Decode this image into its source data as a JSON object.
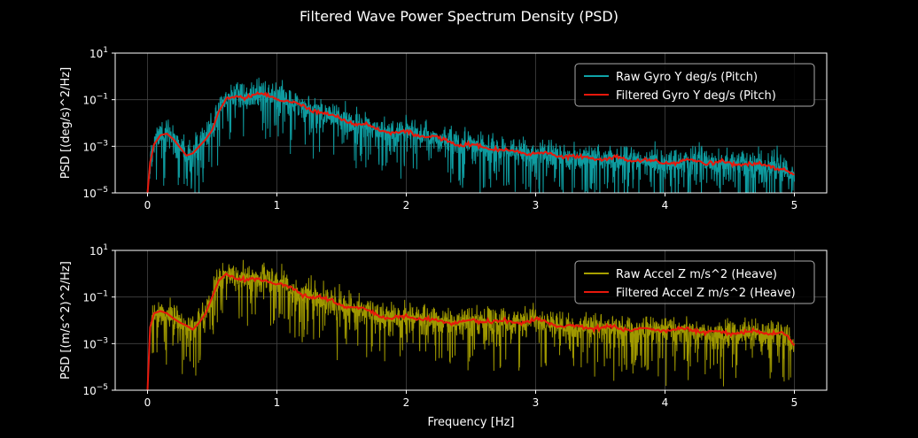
{
  "figure": {
    "title": "Filtered Wave Power Spectrum Density (PSD)",
    "background": "#000000",
    "text_color": "#ffffff",
    "grid_color": "#444444"
  },
  "chart_data": [
    {
      "type": "line",
      "title": "",
      "xlabel": "",
      "ylabel": "PSD [(deg/s)^2/Hz]",
      "xlim": [
        -0.25,
        5.25
      ],
      "ylim": [
        1e-05,
        10
      ],
      "yscale": "log",
      "grid": true,
      "legend_position": "top-right",
      "xticks": [
        0,
        1,
        2,
        3,
        4,
        5
      ],
      "xtick_labels": [
        "0",
        "1",
        "2",
        "3",
        "4",
        "5"
      ],
      "yticks": [
        1e-05,
        0.001,
        0.1,
        10
      ],
      "ytick_labels": [
        [
          "10",
          "−5"
        ],
        [
          "10",
          "−3"
        ],
        [
          "10",
          "−1"
        ],
        [
          "10",
          "1"
        ]
      ],
      "series": [
        {
          "name": "Raw Gyro Y deg/s (Pitch)",
          "color": "#0fa3a8",
          "kind": "raw"
        },
        {
          "name": "Filtered Gyro Y deg/s (Pitch)",
          "color": "#e8180c",
          "kind": "filtered",
          "x": [
            0.0,
            0.02,
            0.05,
            0.1,
            0.15,
            0.2,
            0.25,
            0.3,
            0.35,
            0.4,
            0.45,
            0.5,
            0.55,
            0.6,
            0.7,
            0.8,
            0.9,
            1.0,
            1.1,
            1.2,
            1.3,
            1.4,
            1.5,
            1.6,
            1.7,
            1.8,
            1.9,
            2.0,
            2.2,
            2.4,
            2.6,
            2.8,
            3.0,
            3.2,
            3.4,
            3.6,
            3.8,
            4.0,
            4.2,
            4.4,
            4.6,
            4.8,
            4.9,
            5.0
          ],
          "y": [
            1e-05,
            0.0002,
            0.0012,
            0.003,
            0.0035,
            0.002,
            0.0009,
            0.0004,
            0.0005,
            0.001,
            0.002,
            0.005,
            0.03,
            0.09,
            0.14,
            0.15,
            0.16,
            0.12,
            0.08,
            0.05,
            0.035,
            0.022,
            0.015,
            0.01,
            0.008,
            0.005,
            0.004,
            0.004,
            0.0025,
            0.0013,
            0.0009,
            0.0006,
            0.0005,
            0.0004,
            0.0003,
            0.0003,
            0.00025,
            0.0002,
            0.00025,
            0.0002,
            0.00018,
            0.00015,
            0.00012,
            5e-05
          ]
        }
      ]
    },
    {
      "type": "line",
      "title": "",
      "xlabel": "Frequency [Hz]",
      "ylabel": "PSD [(m/s^2)^2/Hz]",
      "xlim": [
        -0.25,
        5.25
      ],
      "ylim": [
        1e-05,
        10
      ],
      "yscale": "log",
      "grid": true,
      "legend_position": "top-right",
      "xticks": [
        0,
        1,
        2,
        3,
        4,
        5
      ],
      "xtick_labels": [
        "0",
        "1",
        "2",
        "3",
        "4",
        "5"
      ],
      "yticks": [
        1e-05,
        0.001,
        0.1,
        10
      ],
      "ytick_labels": [
        [
          "10",
          "−5"
        ],
        [
          "10",
          "−3"
        ],
        [
          "10",
          "−1"
        ],
        [
          "10",
          "1"
        ]
      ],
      "series": [
        {
          "name": "Raw Accel Z m/s^2 (Heave)",
          "color": "#a8a000",
          "kind": "raw"
        },
        {
          "name": "Filtered Accel Z m/s^2 (Heave)",
          "color": "#e8180c",
          "kind": "filtered",
          "x": [
            0.0,
            0.02,
            0.05,
            0.1,
            0.15,
            0.2,
            0.25,
            0.3,
            0.35,
            0.4,
            0.45,
            0.5,
            0.55,
            0.6,
            0.7,
            0.8,
            0.9,
            1.0,
            1.1,
            1.2,
            1.3,
            1.4,
            1.5,
            1.6,
            1.7,
            1.8,
            1.9,
            2.0,
            2.2,
            2.4,
            2.6,
            2.8,
            3.0,
            3.2,
            3.4,
            3.6,
            3.8,
            4.0,
            4.2,
            4.4,
            4.6,
            4.8,
            4.9,
            5.0
          ],
          "y": [
            1e-05,
            0.005,
            0.02,
            0.025,
            0.02,
            0.012,
            0.008,
            0.006,
            0.004,
            0.008,
            0.02,
            0.1,
            0.5,
            0.9,
            0.7,
            0.55,
            0.5,
            0.45,
            0.25,
            0.12,
            0.1,
            0.07,
            0.05,
            0.035,
            0.025,
            0.015,
            0.012,
            0.015,
            0.01,
            0.008,
            0.01,
            0.008,
            0.01,
            0.006,
            0.005,
            0.005,
            0.004,
            0.004,
            0.004,
            0.003,
            0.003,
            0.003,
            0.003,
            0.0008
          ]
        }
      ]
    }
  ]
}
